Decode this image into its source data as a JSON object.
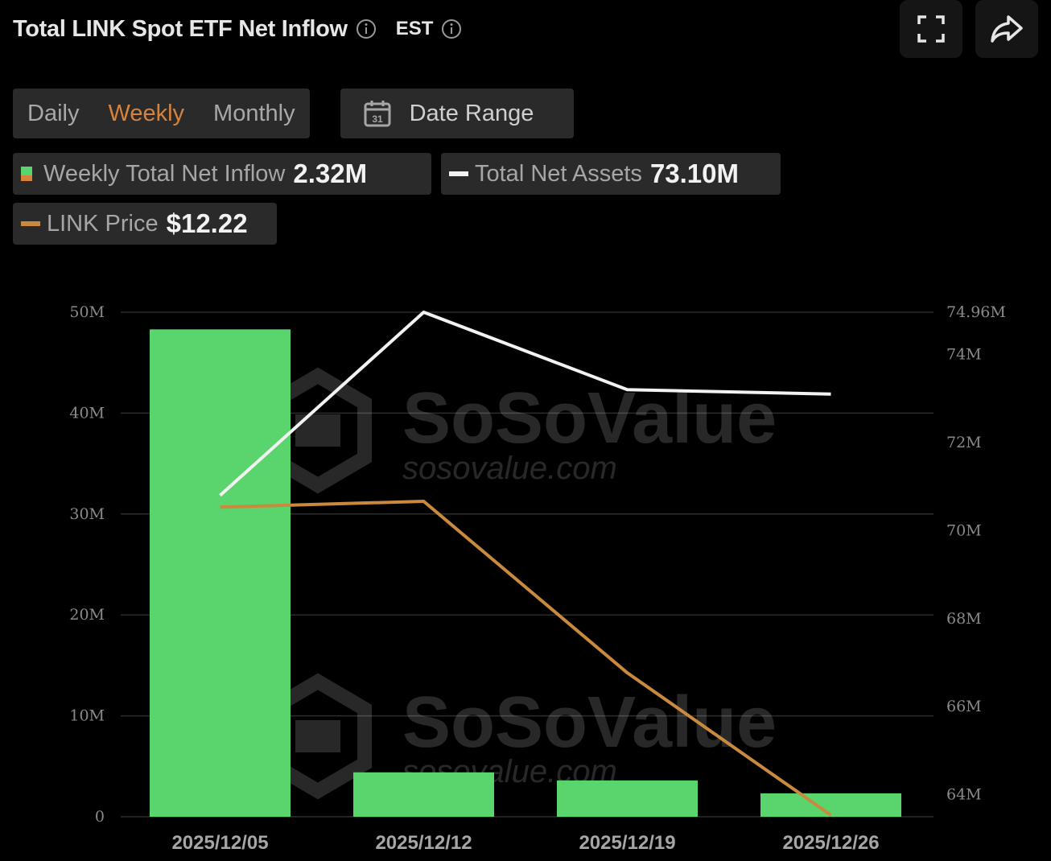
{
  "header": {
    "title": "Total LINK Spot ETF Net Inflow",
    "timezone": "EST"
  },
  "controls": {
    "periods": [
      "Daily",
      "Weekly",
      "Monthly"
    ],
    "active_period": "Weekly",
    "date_range_label": "Date Range"
  },
  "legend": {
    "inflow_label": "Weekly Total Net Inflow",
    "inflow_value": "2.32M",
    "assets_label": "Total Net Assets",
    "assets_value": "73.10M",
    "price_label": "LINK Price",
    "price_value": "$12.22"
  },
  "watermark": {
    "brand": "SoSoValue",
    "domain": "sosovalue.com"
  },
  "colors": {
    "inflow": "#5ad46c",
    "assets": "#f2f2f2",
    "price": "#c98a3e",
    "grid": "#2c2c2c",
    "active_tab": "#d9823a"
  },
  "chart_data": {
    "type": "bar",
    "categories": [
      "2025/12/05",
      "2025/12/12",
      "2025/12/19",
      "2025/12/26"
    ],
    "series": [
      {
        "name": "Weekly Total Net Inflow",
        "type": "bar",
        "axis": "left",
        "values": [
          48.3,
          4.4,
          3.6,
          2.32
        ]
      },
      {
        "name": "Total Net Assets",
        "type": "line",
        "axis": "right",
        "values": [
          70.8,
          74.96,
          73.2,
          73.1
        ]
      },
      {
        "name": "LINK Price",
        "type": "line",
        "axis": "price",
        "values": [
          13.8,
          13.83,
          12.95,
          12.22
        ]
      }
    ],
    "y_left": {
      "min": 0,
      "max": 50,
      "ticks": [
        "0",
        "10M",
        "20M",
        "30M",
        "40M",
        "50M"
      ]
    },
    "y_right": {
      "min": 63.5,
      "max": 74.96,
      "ticks": [
        "64M",
        "66M",
        "68M",
        "70M",
        "72M",
        "74M",
        "74.96M"
      ]
    },
    "price_range": [
      12.22,
      13.83
    ],
    "grid": true
  }
}
